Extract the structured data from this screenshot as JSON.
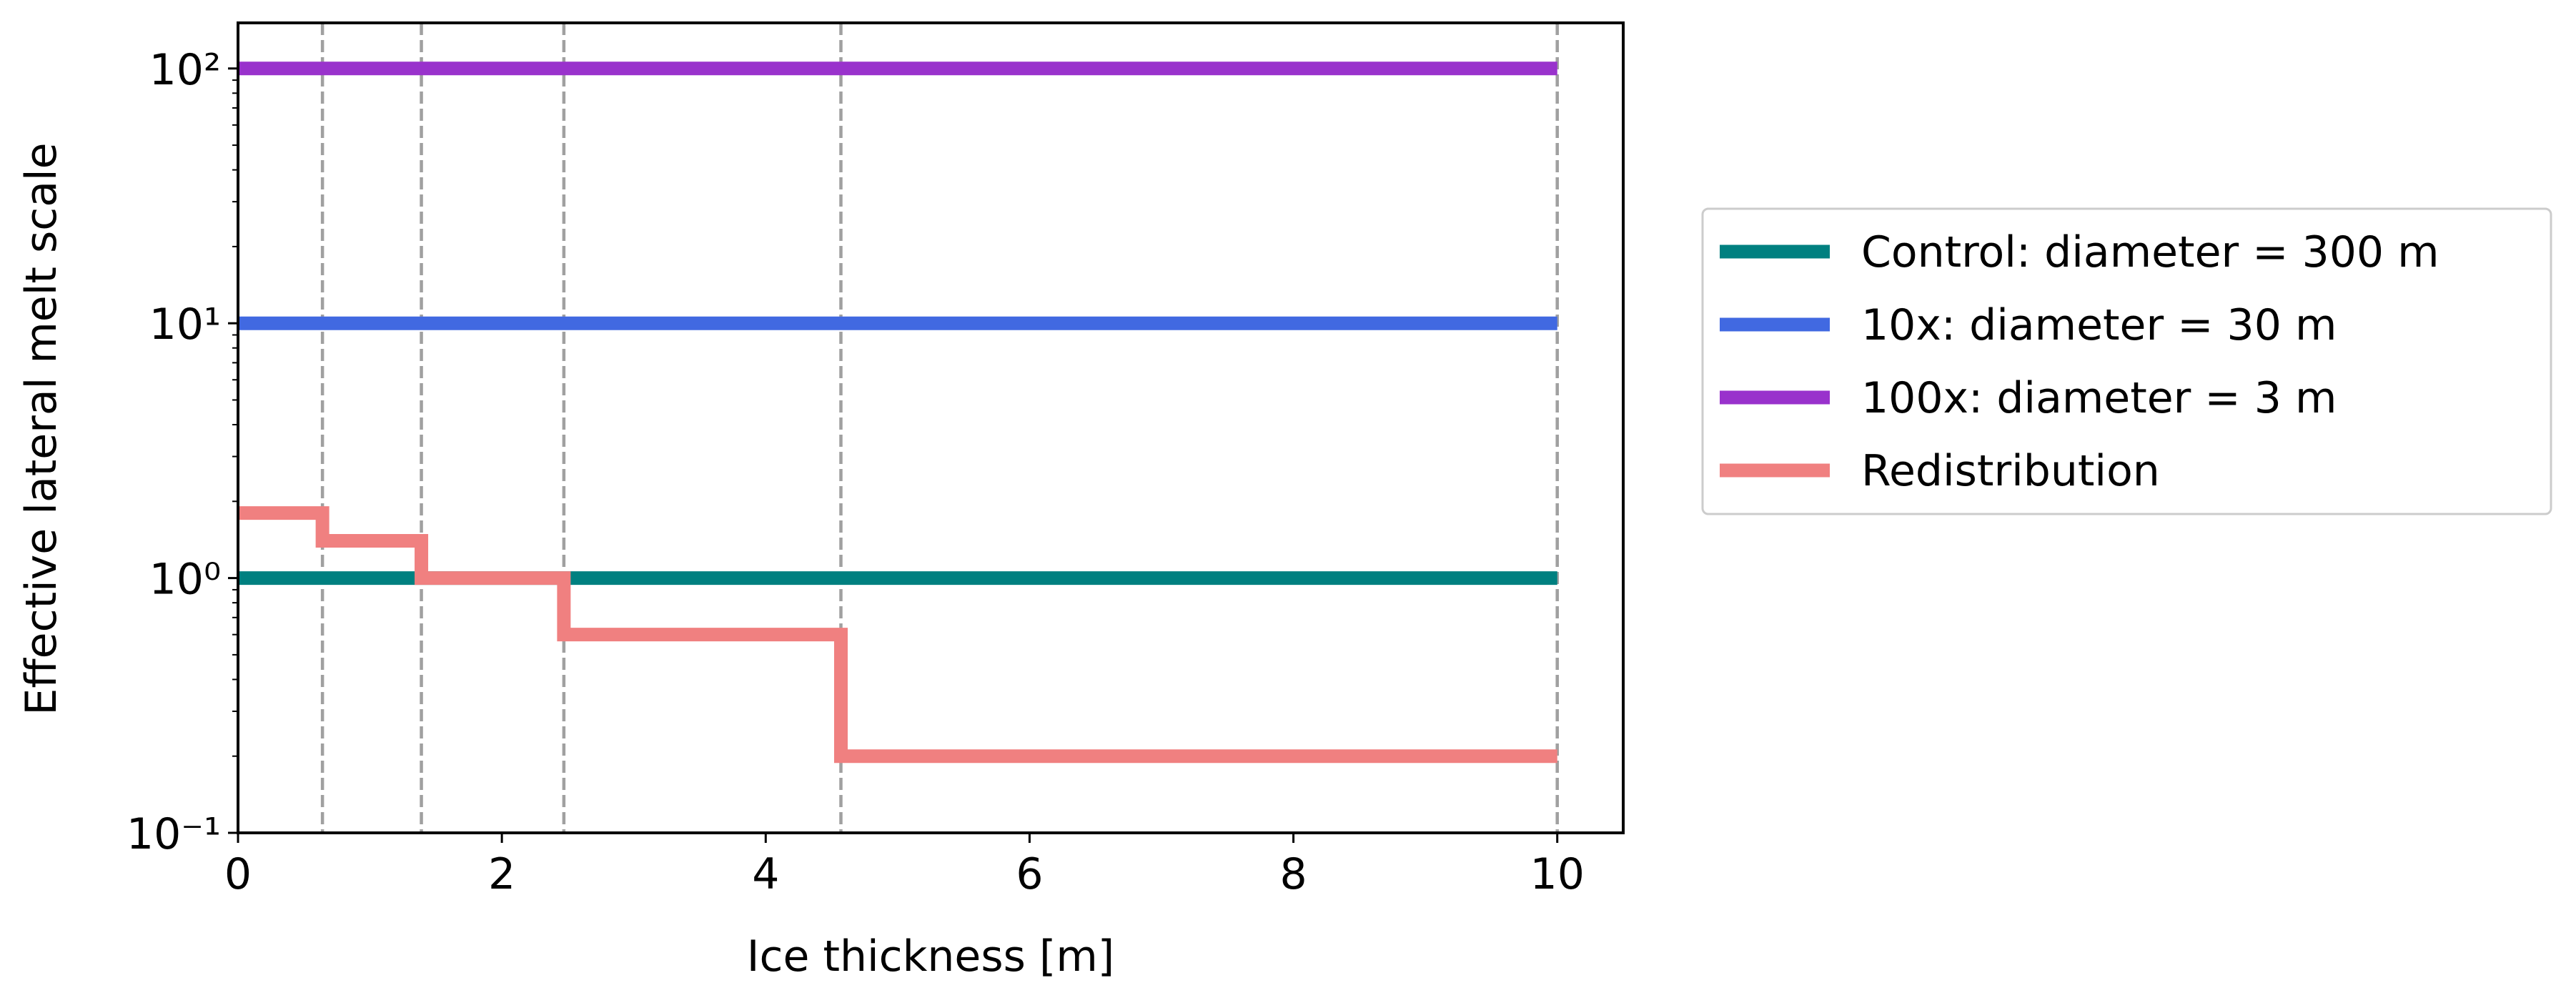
{
  "chart_data": {
    "type": "line",
    "xlabel": "Ice thickness [m]",
    "ylabel": "Effective lateral melt scale",
    "xlim": [
      0,
      10.5
    ],
    "xticks": [
      0,
      2,
      4,
      6,
      8,
      10
    ],
    "ylim": [
      0.1,
      151
    ],
    "yscale": "log",
    "yticks": [
      {
        "value": 0.1,
        "label": "10⁻¹"
      },
      {
        "value": 1,
        "label": "10⁰"
      },
      {
        "value": 10,
        "label": "10¹"
      },
      {
        "value": 100,
        "label": "10²"
      }
    ],
    "yminorticks": [
      0.2,
      0.3,
      0.4,
      0.5,
      0.6,
      0.7,
      0.8,
      0.9,
      2,
      3,
      4,
      5,
      6,
      7,
      8,
      9,
      20,
      30,
      40,
      50,
      60,
      70,
      80,
      90
    ],
    "vlines": [
      0.64,
      1.39,
      2.47,
      4.57,
      10
    ],
    "vline_color": "#a0a0a0",
    "legend": "outside right",
    "series": [
      {
        "name": "Control: diameter = 300 m",
        "color": "#008080",
        "x": [
          0,
          10
        ],
        "values": [
          1,
          1
        ]
      },
      {
        "name": "10x: diameter = 30 m",
        "color": "#4169e1",
        "x": [
          0,
          10
        ],
        "values": [
          10,
          10
        ]
      },
      {
        "name": "100x: diameter = 3 m",
        "color": "#9932cc",
        "x": [
          0,
          10
        ],
        "values": [
          100,
          100
        ]
      },
      {
        "name": "Redistribution",
        "color": "#f08080",
        "drawstyle": "steps-post",
        "x": [
          0,
          0.64,
          1.39,
          2.47,
          4.57,
          10
        ],
        "values": [
          1.8,
          1.4,
          1.0,
          0.6,
          0.2,
          0.2
        ]
      }
    ]
  }
}
